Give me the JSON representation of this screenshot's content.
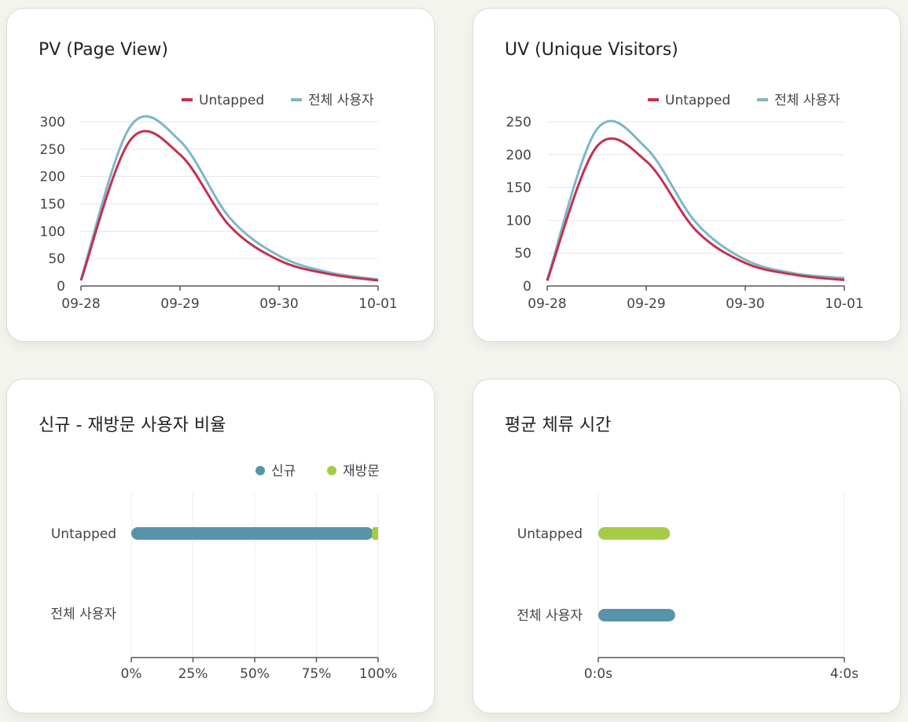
{
  "colors": {
    "untapped_line": "#c5304c",
    "all_users_line": "#7db6c9",
    "new_users": "#5893aa",
    "returning_users": "#a6cb45",
    "grid": "#e6e6e6",
    "axis": "#555555"
  },
  "chart_data": [
    {
      "type": "line",
      "title": "PV (Page View)",
      "categories": [
        "09-28",
        "09-29",
        "09-30",
        "10-01"
      ],
      "ylim": [
        0,
        300
      ],
      "yticks": [
        0,
        50,
        100,
        150,
        200,
        250,
        300
      ],
      "legend": "top-right",
      "series": [
        {
          "name": "Untapped",
          "x": [
            0,
            0.5,
            1,
            1.5,
            2,
            2.5,
            3
          ],
          "values": [
            10,
            267,
            240,
            110,
            47,
            22,
            10
          ]
        },
        {
          "name": "전체 사용자",
          "x": [
            0,
            0.5,
            1,
            1.5,
            2,
            2.5,
            3
          ],
          "values": [
            12,
            292,
            265,
            125,
            55,
            25,
            12
          ]
        }
      ]
    },
    {
      "type": "line",
      "title": "UV (Unique Visitors)",
      "categories": [
        "09-28",
        "09-29",
        "09-30",
        "10-01"
      ],
      "ylim": [
        0,
        250
      ],
      "yticks": [
        0,
        50,
        100,
        150,
        200,
        250
      ],
      "legend": "top-right",
      "series": [
        {
          "name": "Untapped",
          "x": [
            0,
            0.5,
            1,
            1.5,
            2,
            2.5,
            3
          ],
          "values": [
            8,
            212,
            190,
            85,
            35,
            17,
            9
          ]
        },
        {
          "name": "전체 사용자",
          "x": [
            0,
            0.5,
            1,
            1.5,
            2,
            2.5,
            3
          ],
          "values": [
            9,
            238,
            210,
            97,
            40,
            19,
            12
          ]
        }
      ]
    },
    {
      "type": "bar",
      "orientation": "horizontal",
      "stacked": true,
      "title": "신규 - 재방문 사용자 비율",
      "categories": [
        "Untapped",
        "전체 사용자"
      ],
      "xticks": [
        "0%",
        "25%",
        "50%",
        "75%",
        "100%"
      ],
      "xlim": [
        0,
        100
      ],
      "legend": "top-right",
      "series": [
        {
          "name": "신규",
          "values": [
            98,
            0
          ]
        },
        {
          "name": "재방문",
          "values": [
            2,
            0
          ]
        }
      ]
    },
    {
      "type": "bar",
      "orientation": "horizontal",
      "title": "평균 체류 시간",
      "categories": [
        "Untapped",
        "전체 사용자"
      ],
      "xticks": [
        "0:0s",
        "4:0s"
      ],
      "xlim": [
        0,
        240
      ],
      "values": [
        70,
        75
      ],
      "bar_colors": [
        "#a6cb45",
        "#5893aa"
      ]
    }
  ]
}
